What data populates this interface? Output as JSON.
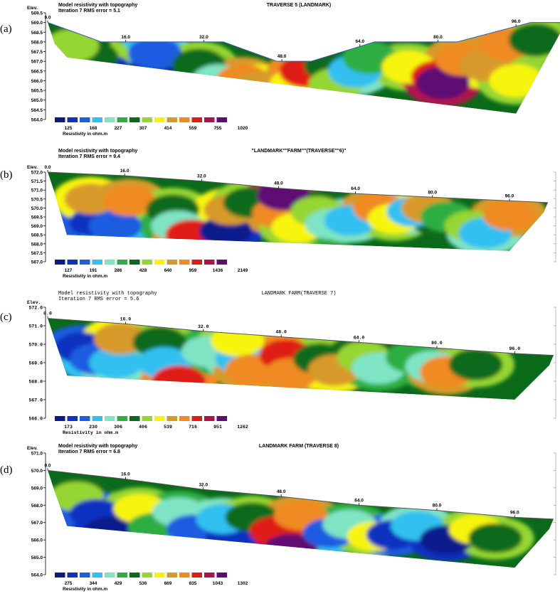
{
  "colors": [
    "#0a1c8c",
    "#1030c0",
    "#1e5ce0",
    "#31c0f0",
    "#7fe4c4",
    "#2eae42",
    "#0a6a1a",
    "#96d632",
    "#f7f40a",
    "#d79a2a",
    "#f08a24",
    "#e01a14",
    "#b0124a",
    "#5e0c74"
  ],
  "chart_data": [
    {
      "type": "heatmap",
      "panel_label": "(a)",
      "title": "TRAVERSE 5 (LANDMARK)",
      "header_line1": "Model resistivity with topography",
      "header_line2": "Iteration 7 RMS error = 5.1",
      "ylabel": "Elev.",
      "y_ticks": [
        "569.5",
        "569.0",
        "568.5",
        "568.0",
        "567.5",
        "567.0",
        "566.5",
        "566.0",
        "565.5",
        "565.0",
        "564.5",
        "564.0"
      ],
      "x_ticks": [
        "0.0",
        "16.0",
        "32.0",
        "48.0",
        "64.0",
        "80.0",
        "96.0"
      ],
      "legend_values": [
        "125",
        "168",
        "227",
        "307",
        "414",
        "559",
        "755",
        "1020"
      ],
      "legend_title": "Resistivity in ohm.m",
      "ylim": [
        564.0,
        569.5
      ],
      "xlim": [
        0,
        104
      ],
      "surface": [
        [
          0,
          569.0
        ],
        [
          11,
          568.0
        ],
        [
          36,
          568.0
        ],
        [
          47,
          567.0
        ],
        [
          54,
          567.0
        ],
        [
          67,
          568.0
        ],
        [
          84,
          568.0
        ],
        [
          99,
          569.0
        ],
        [
          106,
          569.0
        ]
      ],
      "blobs": [
        {
          "x": 12,
          "y": 566.5,
          "level": 1
        },
        {
          "x": 21,
          "y": 566.3,
          "level": 0
        },
        {
          "x": 22,
          "y": 567.4,
          "level": 2
        },
        {
          "x": 9,
          "y": 567.2,
          "level": 6
        },
        {
          "x": 5,
          "y": 567.8,
          "level": 7
        },
        {
          "x": 7,
          "y": 565.8,
          "level": 10
        },
        {
          "x": 31,
          "y": 566.8,
          "level": 6
        },
        {
          "x": 35,
          "y": 566.0,
          "level": 4
        },
        {
          "x": 30,
          "y": 565.3,
          "level": 3
        },
        {
          "x": 40,
          "y": 566.0,
          "level": 10
        },
        {
          "x": 43,
          "y": 565.6,
          "level": 9
        },
        {
          "x": 47,
          "y": 565.0,
          "level": 3
        },
        {
          "x": 51,
          "y": 565.8,
          "level": 8
        },
        {
          "x": 53,
          "y": 566.5,
          "level": 11
        },
        {
          "x": 58,
          "y": 566.8,
          "level": 6
        },
        {
          "x": 59,
          "y": 565.8,
          "level": 7
        },
        {
          "x": 63,
          "y": 566.5,
          "level": 3
        },
        {
          "x": 66,
          "y": 567.2,
          "level": 5
        },
        {
          "x": 74,
          "y": 566.7,
          "level": 8
        },
        {
          "x": 80,
          "y": 566.2,
          "level": 11
        },
        {
          "x": 81,
          "y": 565.9,
          "level": 13
        },
        {
          "x": 85,
          "y": 567.1,
          "level": 10
        },
        {
          "x": 90,
          "y": 566.8,
          "level": 9
        },
        {
          "x": 94,
          "y": 567.9,
          "level": 10
        },
        {
          "x": 100,
          "y": 568.1,
          "level": 6
        },
        {
          "x": 96,
          "y": 566.0,
          "level": 8
        }
      ]
    },
    {
      "type": "heatmap",
      "panel_label": "(b)",
      "title": "\"LANDMARK\"\"FARM\"\"(TRAVERSE\"\"6)\"",
      "header_line1": "Model resistivity with topography",
      "header_line2": "Iteration 7 RMS error = 9.4",
      "ylabel": "Elev.",
      "y_ticks": [
        "572.0",
        "571.5",
        "571.0",
        "570.5",
        "570.0",
        "569.5",
        "569.0",
        "568.5",
        "568.0",
        "567.5",
        "567.0"
      ],
      "x_ticks": [
        "0.0",
        "16.0",
        "32.0",
        "48.0",
        "64.0",
        "80.0",
        "96.0"
      ],
      "legend_values": [
        "127",
        "191",
        "286",
        "428",
        "640",
        "959",
        "1436",
        "2149"
      ],
      "legend_title": "Resistivity in ohm.m",
      "ylim": [
        567.0,
        572.0
      ],
      "xlim": [
        0,
        104
      ],
      "surface": [
        [
          0,
          572.0
        ],
        [
          16,
          571.8
        ],
        [
          32,
          571.5
        ],
        [
          48,
          571.1
        ],
        [
          64,
          570.8
        ],
        [
          80,
          570.6
        ],
        [
          96,
          570.4
        ],
        [
          104,
          570.3
        ]
      ],
      "blobs": [
        {
          "x": 10,
          "y": 569.2,
          "level": 1
        },
        {
          "x": 14,
          "y": 569.0,
          "level": 2
        },
        {
          "x": 9,
          "y": 570.5,
          "level": 9
        },
        {
          "x": 17,
          "y": 570.4,
          "level": 10
        },
        {
          "x": 26,
          "y": 569.9,
          "level": 6
        },
        {
          "x": 27,
          "y": 569.0,
          "level": 4
        },
        {
          "x": 30,
          "y": 568.5,
          "level": 11
        },
        {
          "x": 37,
          "y": 568.7,
          "level": 0
        },
        {
          "x": 38,
          "y": 569.9,
          "level": 9
        },
        {
          "x": 42,
          "y": 570.3,
          "level": 6
        },
        {
          "x": 48,
          "y": 569.7,
          "level": 10
        },
        {
          "x": 49,
          "y": 570.7,
          "level": 13
        },
        {
          "x": 52,
          "y": 568.9,
          "level": 8
        },
        {
          "x": 56,
          "y": 569.8,
          "level": 7
        },
        {
          "x": 59,
          "y": 569.1,
          "level": 4
        },
        {
          "x": 63,
          "y": 569.3,
          "level": 3
        },
        {
          "x": 69,
          "y": 570.0,
          "level": 10
        },
        {
          "x": 72,
          "y": 569.4,
          "level": 8
        },
        {
          "x": 76,
          "y": 569.8,
          "level": 3
        },
        {
          "x": 79,
          "y": 570.0,
          "level": 9
        },
        {
          "x": 83,
          "y": 569.5,
          "level": 5
        },
        {
          "x": 88,
          "y": 569.0,
          "level": 7
        },
        {
          "x": 91,
          "y": 568.6,
          "level": 3
        },
        {
          "x": 96,
          "y": 569.6,
          "level": 10
        }
      ]
    },
    {
      "type": "heatmap",
      "panel_label": "(c)",
      "title": "LANDMARK FARM(TRAVERSE 7)",
      "header_line1": "Model resistivity with topography",
      "header_line2": "Iteration 7 RMS error = 5.6",
      "ylabel": "Elev.",
      "y_ticks": [
        "572.0",
        "571.0",
        "570.0",
        "569.0",
        "568.0",
        "567.0",
        "566.0"
      ],
      "x_ticks": [
        "0.0",
        "16.0",
        "32.0",
        "48.0",
        "64.0",
        "80.0",
        "96.0"
      ],
      "legend_values": [
        "173",
        "230",
        "306",
        "406",
        "539",
        "716",
        "951",
        "1262"
      ],
      "legend_title": "Resistivity in ohm.m",
      "ylim": [
        566.0,
        572.0
      ],
      "xlim": [
        0,
        104
      ],
      "surface": [
        [
          0,
          571.4
        ],
        [
          16,
          571.1
        ],
        [
          32,
          570.7
        ],
        [
          48,
          570.4
        ],
        [
          64,
          570.1
        ],
        [
          80,
          569.8
        ],
        [
          96,
          569.5
        ],
        [
          104,
          569.4
        ]
      ],
      "blobs": [
        {
          "x": 7,
          "y": 569.8,
          "level": 1
        },
        {
          "x": 10,
          "y": 569.2,
          "level": 2
        },
        {
          "x": 14,
          "y": 569.0,
          "level": 3
        },
        {
          "x": 15,
          "y": 570.3,
          "level": 9
        },
        {
          "x": 23,
          "y": 570.1,
          "level": 6
        },
        {
          "x": 24,
          "y": 569.0,
          "level": 3
        },
        {
          "x": 27,
          "y": 568.0,
          "level": 11
        },
        {
          "x": 33,
          "y": 569.6,
          "level": 4
        },
        {
          "x": 40,
          "y": 569.2,
          "level": 3
        },
        {
          "x": 39,
          "y": 570.2,
          "level": 8
        },
        {
          "x": 42,
          "y": 568.6,
          "level": 10
        },
        {
          "x": 49,
          "y": 569.4,
          "level": 11
        },
        {
          "x": 50,
          "y": 568.4,
          "level": 10
        },
        {
          "x": 56,
          "y": 569.2,
          "level": 6
        },
        {
          "x": 59,
          "y": 568.6,
          "level": 9
        },
        {
          "x": 65,
          "y": 569.3,
          "level": 7
        },
        {
          "x": 68,
          "y": 568.7,
          "level": 4
        },
        {
          "x": 75,
          "y": 569.3,
          "level": 5
        },
        {
          "x": 79,
          "y": 568.8,
          "level": 4
        },
        {
          "x": 82,
          "y": 568.5,
          "level": 10
        },
        {
          "x": 88,
          "y": 568.9,
          "level": 6
        }
      ]
    },
    {
      "type": "heatmap",
      "panel_label": "(d)",
      "title": "LANDMARK FARM (TRAVERSE 8)",
      "header_line1": "Model resistivity with topography",
      "header_line2": "Iteration 7 RMS error = 6.8",
      "ylabel": "Elev.",
      "y_ticks": [
        "571.0",
        "570.0",
        "569.0",
        "568.0",
        "567.0",
        "566.0",
        "565.0",
        "564.0"
      ],
      "x_ticks": [
        "0.0",
        "16.0",
        "32.0",
        "48.0",
        "64.0",
        "80.0",
        "96.0"
      ],
      "legend_values": [
        "275",
        "344",
        "429",
        "536",
        "669",
        "835",
        "1043",
        "1302"
      ],
      "legend_title": "Resistivity in ohm.m",
      "ylim": [
        564.0,
        571.0
      ],
      "xlim": [
        0,
        104
      ],
      "surface": [
        [
          0,
          570.0
        ],
        [
          16,
          569.5
        ],
        [
          32,
          568.9
        ],
        [
          48,
          568.5
        ],
        [
          64,
          568.0
        ],
        [
          80,
          567.7
        ],
        [
          96,
          567.3
        ],
        [
          104,
          567.2
        ]
      ],
      "blobs": [
        {
          "x": 6,
          "y": 568.5,
          "level": 7
        },
        {
          "x": 10,
          "y": 567.5,
          "level": 1
        },
        {
          "x": 13,
          "y": 566.5,
          "level": 0
        },
        {
          "x": 19,
          "y": 567.8,
          "level": 8
        },
        {
          "x": 22,
          "y": 566.7,
          "level": 5
        },
        {
          "x": 27,
          "y": 567.6,
          "level": 4
        },
        {
          "x": 30,
          "y": 566.6,
          "level": 2
        },
        {
          "x": 38,
          "y": 566.2,
          "level": 1
        },
        {
          "x": 36,
          "y": 567.2,
          "level": 3
        },
        {
          "x": 42,
          "y": 567.3,
          "level": 6
        },
        {
          "x": 47,
          "y": 566.5,
          "level": 11
        },
        {
          "x": 50,
          "y": 565.5,
          "level": 13
        },
        {
          "x": 52,
          "y": 567.4,
          "level": 10
        },
        {
          "x": 58,
          "y": 566.4,
          "level": 2
        },
        {
          "x": 62,
          "y": 566.9,
          "level": 4
        },
        {
          "x": 67,
          "y": 566.2,
          "level": 8
        },
        {
          "x": 71,
          "y": 566.3,
          "level": 1
        },
        {
          "x": 76,
          "y": 566.8,
          "level": 3
        },
        {
          "x": 82,
          "y": 566.0,
          "level": 0
        },
        {
          "x": 88,
          "y": 566.6,
          "level": 8
        },
        {
          "x": 92,
          "y": 566.1,
          "level": 6
        }
      ]
    }
  ]
}
